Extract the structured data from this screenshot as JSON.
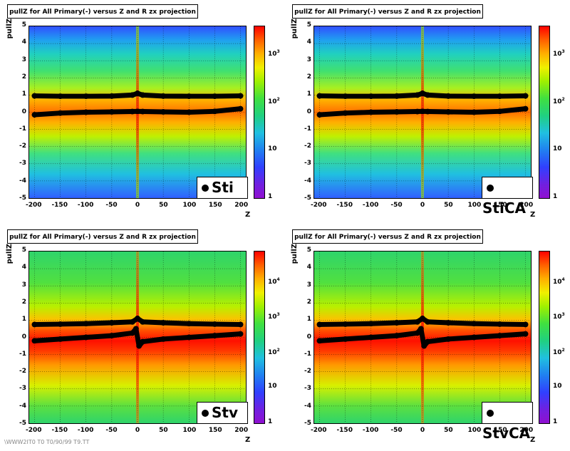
{
  "panels": [
    {
      "title": "pullZ for All Primary(-) versus Z and R zx projection",
      "legend": "Sti",
      "color_ticks": [
        {
          "base": "10",
          "exp": "3",
          "level": 3
        },
        {
          "base": "10",
          "exp": "2",
          "level": 2
        },
        {
          "base": "10",
          "exp": "",
          "level": 1
        },
        {
          "base": "1",
          "exp": "",
          "level": 0
        }
      ],
      "color_max_decade": 3.6
    },
    {
      "title": "pullZ for All Primary(-) versus Z and R zx projection",
      "legend": "StiCA",
      "color_ticks": [
        {
          "base": "10",
          "exp": "3",
          "level": 3
        },
        {
          "base": "10",
          "exp": "2",
          "level": 2
        },
        {
          "base": "10",
          "exp": "",
          "level": 1
        },
        {
          "base": "1",
          "exp": "",
          "level": 0
        }
      ],
      "color_max_decade": 3.6
    },
    {
      "title": "pullZ for All Primary(-) versus Z and R zx projection",
      "legend": "Stv",
      "color_ticks": [
        {
          "base": "10",
          "exp": "4",
          "level": 4
        },
        {
          "base": "10",
          "exp": "3",
          "level": 3
        },
        {
          "base": "10",
          "exp": "2",
          "level": 2
        },
        {
          "base": "10",
          "exp": "",
          "level": 1
        },
        {
          "base": "1",
          "exp": "",
          "level": 0
        }
      ],
      "color_max_decade": 4.9
    },
    {
      "title": "pullZ for All Primary(-) versus Z and R zx projection",
      "legend": "StvCA",
      "color_ticks": [
        {
          "base": "10",
          "exp": "4",
          "level": 4
        },
        {
          "base": "10",
          "exp": "3",
          "level": 3
        },
        {
          "base": "10",
          "exp": "2",
          "level": 2
        },
        {
          "base": "10",
          "exp": "",
          "level": 1
        },
        {
          "base": "1",
          "exp": "",
          "level": 0
        }
      ],
      "color_max_decade": 4.9
    }
  ],
  "axes": {
    "xlabel": "Z",
    "ylabel": "pullZ",
    "xticks": [
      "-200",
      "-150",
      "-100",
      "-50",
      "0",
      "50",
      "100",
      "150",
      "200"
    ],
    "yticks": [
      "5",
      "4",
      "3",
      "2",
      "1",
      "0",
      "-1",
      "-2",
      "-3",
      "-4",
      "-5"
    ]
  },
  "footer": "\\WWW2IT0 T0 T0/90/99 T9.TT",
  "chart_data": [
    {
      "type": "heatmap",
      "title": "pullZ for All Primary(-) versus Z and R zx projection",
      "xlabel": "Z",
      "ylabel": "pullZ",
      "xlim": [
        -210,
        210
      ],
      "ylim": [
        -5,
        5
      ],
      "z_scale": "log",
      "z_ticks": [
        "1",
        "10",
        "10^2",
        "10^3"
      ],
      "legend": [
        "Sti"
      ],
      "series": [
        {
          "name": "rms",
          "x": [
            -200,
            -150,
            -100,
            -50,
            -10,
            0,
            10,
            50,
            100,
            150,
            200
          ],
          "y": [
            0.95,
            0.93,
            0.93,
            0.94,
            1.0,
            1.1,
            1.0,
            0.94,
            0.93,
            0.93,
            0.95
          ]
        },
        {
          "name": "mean",
          "x": [
            -200,
            -150,
            -100,
            -50,
            -10,
            0,
            10,
            50,
            100,
            150,
            200
          ],
          "y": [
            -0.15,
            -0.05,
            0.0,
            0.02,
            0.04,
            0.05,
            0.04,
            0.02,
            0.0,
            0.05,
            0.2
          ]
        }
      ]
    },
    {
      "type": "heatmap",
      "title": "pullZ for All Primary(-) versus Z and R zx projection",
      "xlabel": "Z",
      "ylabel": "pullZ",
      "xlim": [
        -210,
        210
      ],
      "ylim": [
        -5,
        5
      ],
      "z_scale": "log",
      "z_ticks": [
        "1",
        "10",
        "10^2",
        "10^3"
      ],
      "legend": [
        "StiCA"
      ],
      "series": [
        {
          "name": "rms",
          "x": [
            -200,
            -150,
            -100,
            -50,
            -10,
            0,
            10,
            50,
            100,
            150,
            200
          ],
          "y": [
            0.95,
            0.93,
            0.93,
            0.94,
            1.0,
            1.1,
            1.0,
            0.94,
            0.93,
            0.93,
            0.95
          ]
        },
        {
          "name": "mean",
          "x": [
            -200,
            -150,
            -100,
            -50,
            -10,
            0,
            10,
            50,
            100,
            150,
            200
          ],
          "y": [
            -0.15,
            -0.05,
            0.0,
            0.02,
            0.04,
            0.05,
            0.04,
            0.02,
            0.0,
            0.05,
            0.2
          ]
        }
      ]
    },
    {
      "type": "heatmap",
      "title": "pullZ for All Primary(-) versus Z and R zx projection",
      "xlabel": "Z",
      "ylabel": "pullZ",
      "xlim": [
        -210,
        210
      ],
      "ylim": [
        -5,
        5
      ],
      "z_scale": "log",
      "z_ticks": [
        "1",
        "10",
        "10^2",
        "10^3",
        "10^4"
      ],
      "legend": [
        "Stv"
      ],
      "series": [
        {
          "name": "rms",
          "x": [
            -200,
            -150,
            -100,
            -50,
            -10,
            0,
            10,
            50,
            100,
            150,
            200
          ],
          "y": [
            0.75,
            0.77,
            0.8,
            0.85,
            0.9,
            1.1,
            0.9,
            0.85,
            0.8,
            0.77,
            0.75
          ]
        },
        {
          "name": "mean",
          "x": [
            -200,
            -150,
            -100,
            -50,
            -10,
            -3,
            3,
            10,
            50,
            100,
            150,
            200
          ],
          "y": [
            -0.2,
            -0.1,
            0.0,
            0.1,
            0.25,
            0.5,
            -0.5,
            -0.25,
            -0.1,
            0.0,
            0.1,
            0.2
          ]
        }
      ]
    },
    {
      "type": "heatmap",
      "title": "pullZ for All Primary(-) versus Z and R zx projection",
      "xlabel": "Z",
      "ylabel": "pullZ",
      "xlim": [
        -210,
        210
      ],
      "ylim": [
        -5,
        5
      ],
      "z_scale": "log",
      "z_ticks": [
        "1",
        "10",
        "10^2",
        "10^3",
        "10^4"
      ],
      "legend": [
        "StvCA"
      ],
      "series": [
        {
          "name": "rms",
          "x": [
            -200,
            -150,
            -100,
            -50,
            -10,
            0,
            10,
            50,
            100,
            150,
            200
          ],
          "y": [
            0.75,
            0.77,
            0.8,
            0.85,
            0.9,
            1.1,
            0.9,
            0.85,
            0.8,
            0.77,
            0.75
          ]
        },
        {
          "name": "mean",
          "x": [
            -200,
            -150,
            -100,
            -50,
            -10,
            -3,
            3,
            10,
            50,
            100,
            150,
            200
          ],
          "y": [
            -0.2,
            -0.1,
            0.0,
            0.1,
            0.25,
            0.5,
            -0.5,
            -0.25,
            -0.1,
            0.0,
            0.1,
            0.2
          ]
        }
      ]
    }
  ]
}
